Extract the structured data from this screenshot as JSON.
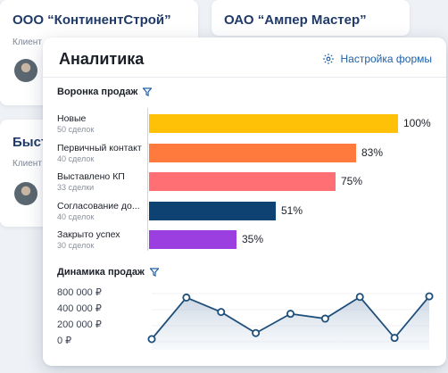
{
  "background": {
    "card1": {
      "title": "ООО “КонтинентСтрой”",
      "label": "Клиент"
    },
    "card2": {
      "title": "ОАО “Ампер Мастер”"
    },
    "card3": {
      "title": "Быст",
      "label": "Клиент"
    }
  },
  "panel": {
    "title": "Аналитика",
    "settings_label": "Настройка формы",
    "funnel_title": "Воронка продаж",
    "dynamics_title": "Динамика продаж"
  },
  "colors": {
    "accent": "#1f5fa6",
    "line": "#1e4e7a"
  },
  "funnel": [
    {
      "label": "Новые",
      "count": "50 сделок",
      "pct_label": "100%",
      "value": 100,
      "color": "#ffc107"
    },
    {
      "label": "Первичный контакт",
      "count": "40 сделок",
      "pct_label": "83%",
      "value": 83,
      "color": "#ff7a3c"
    },
    {
      "label": "Выставлено КП",
      "count": "33 сделки",
      "pct_label": "75%",
      "value": 75,
      "color": "#ff6f73"
    },
    {
      "label": "Согласование до...",
      "count": "40 сделок",
      "pct_label": "51%",
      "value": 51,
      "color": "#0e4272"
    },
    {
      "label": "Закрыто успех",
      "count": "30 сделок",
      "pct_label": "35%",
      "value": 35,
      "color": "#9b3fe0"
    }
  ],
  "chart_data": {
    "type": "area",
    "y_tick_labels": [
      "800 000 ₽",
      "400 000 ₽",
      "200 000 ₽",
      "0 ₽"
    ],
    "ylim": [
      0,
      800000
    ],
    "values": [
      0,
      690000,
      450000,
      100000,
      420000,
      340000,
      700000,
      20000,
      710000
    ]
  }
}
